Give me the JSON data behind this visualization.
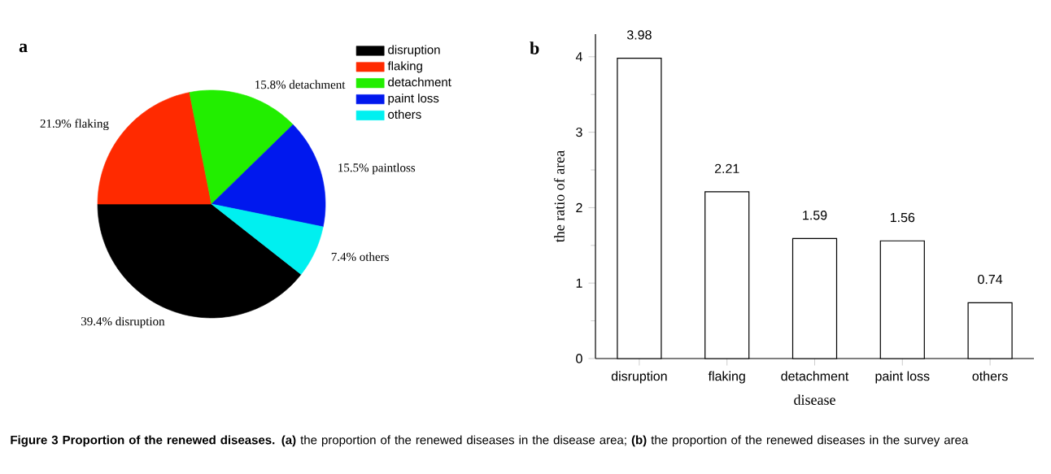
{
  "chart_data": [
    {
      "type": "pie",
      "categories": [
        "disruption",
        "flaking",
        "detachment",
        "paint loss",
        "others"
      ],
      "values": [
        39.4,
        21.9,
        15.8,
        15.5,
        7.4
      ],
      "colors": [
        "#000000",
        "#ff2a00",
        "#22ee00",
        "#0018ee",
        "#00f0f0"
      ],
      "value_labels": [
        "39.4% disruption",
        "21.9% flaking",
        "15.8% detachment",
        "15.5% paintloss",
        "7.4%  others"
      ],
      "legend": "top right",
      "annotations": [
        "a",
        "**Figure 3 Proportion of the renewed diseases.** **(a)** the proportion of the renewed diseases in the disease area; **(b)** the proportion of the renewed diseases in the survey area"
      ]
    },
    {
      "type": "bar",
      "categories": [
        "disruption",
        "flaking",
        "detachment",
        "paint loss",
        "others"
      ],
      "values": [
        3.98,
        2.21,
        1.59,
        1.56,
        0.74
      ],
      "color": "#ffffff",
      "ylim": [
        0,
        4.3
      ],
      "yticks": [
        0,
        1,
        2,
        3,
        4
      ],
      "xlabel": "disease",
      "ylabel": "the ratio of area",
      "data_labels": true,
      "annotations": [
        "b"
      ]
    }
  ]
}
